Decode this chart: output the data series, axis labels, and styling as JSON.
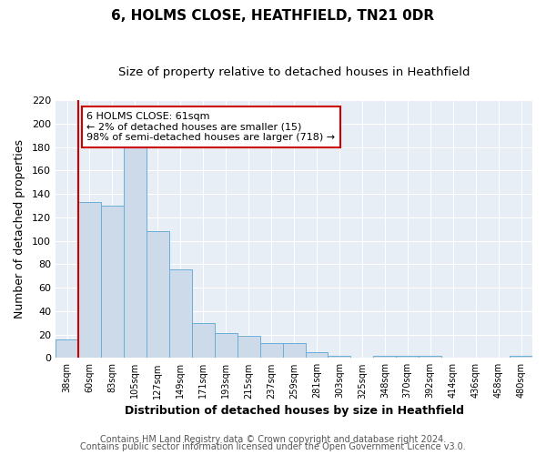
{
  "title": "6, HOLMS CLOSE, HEATHFIELD, TN21 0DR",
  "subtitle": "Size of property relative to detached houses in Heathfield",
  "xlabel": "Distribution of detached houses by size in Heathfield",
  "ylabel": "Number of detached properties",
  "bar_color": "#ccdaea",
  "bar_edge_color": "#6aaed6",
  "plot_bg_color": "#e8eef6",
  "fig_bg_color": "#ffffff",
  "grid_color": "#d0d8e4",
  "categories": [
    "38sqm",
    "60sqm",
    "83sqm",
    "105sqm",
    "127sqm",
    "149sqm",
    "171sqm",
    "193sqm",
    "215sqm",
    "237sqm",
    "259sqm",
    "281sqm",
    "303sqm",
    "325sqm",
    "348sqm",
    "370sqm",
    "392sqm",
    "414sqm",
    "436sqm",
    "458sqm",
    "480sqm"
  ],
  "values": [
    16,
    133,
    130,
    184,
    108,
    76,
    30,
    21,
    19,
    13,
    13,
    5,
    2,
    0,
    2,
    2,
    2,
    0,
    0,
    0,
    2
  ],
  "ylim": [
    0,
    220
  ],
  "yticks": [
    0,
    20,
    40,
    60,
    80,
    100,
    120,
    140,
    160,
    180,
    200,
    220
  ],
  "property_line_color": "#cc0000",
  "annotation_line1": "6 HOLMS CLOSE: 61sqm",
  "annotation_line2": "← 2% of detached houses are smaller (15)",
  "annotation_line3": "98% of semi-detached houses are larger (718) →",
  "footer_line1": "Contains HM Land Registry data © Crown copyright and database right 2024.",
  "footer_line2": "Contains public sector information licensed under the Open Government Licence v3.0.",
  "title_fontsize": 11,
  "subtitle_fontsize": 9.5,
  "xlabel_fontsize": 9,
  "ylabel_fontsize": 9,
  "annot_fontsize": 8,
  "footer_fontsize": 7
}
